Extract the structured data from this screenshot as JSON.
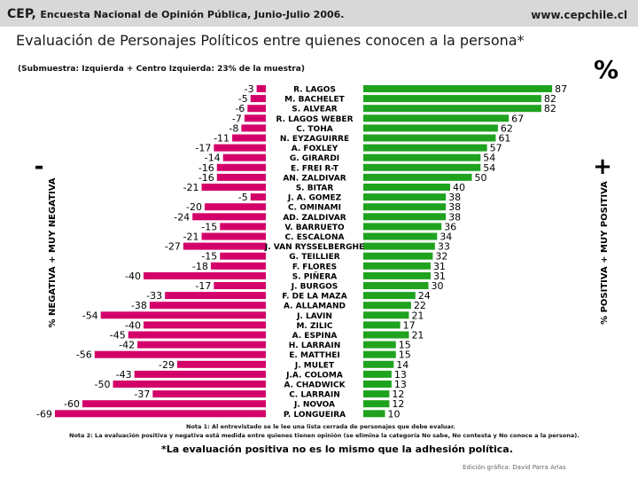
{
  "header": {
    "title": "CEP,",
    "subtitle": "Encuesta Nacional de Opinión Pública, Junio-Julio 2006.",
    "url": "www.cepchile.cl"
  },
  "page_title": "Evaluación de Personajes Políticos entre quienes conocen a la persona*",
  "subsample": "(Submuestra: Izquierda + Centro Izquierda: 23% de la muestra)",
  "percent_symbol": "%",
  "colors": {
    "negative": "#d4006a",
    "positive": "#1fa31f",
    "header_bg": "#d8d8d8"
  },
  "chart_data": {
    "type": "bar",
    "orientation": "horizontal-diverging",
    "title": "Evaluación de Personajes Políticos entre quienes conocen a la persona*",
    "left_axis_label": "% NEGATIVA + MUY NEGATIVA",
    "right_axis_label": "% POSITIVA + MUY POSITIVA",
    "negative_sign": "-",
    "positive_sign": "+",
    "categories": [
      "R. LAGOS",
      "M. BACHELET",
      "S. ALVEAR",
      "R. LAGOS WEBER",
      "C. TOHA",
      "N. EYZAGUIRRE",
      "A. FOXLEY",
      "G. GIRARDI",
      "E. FREI R-T",
      "AN. ZALDIVAR",
      "S. BITAR",
      "J. A. GOMEZ",
      "C. OMINAMI",
      "AD. ZALDIVAR",
      "V. BARRUETO",
      "C. ESCALONA",
      "J. VAN RYSSELBERGHE",
      "G. TEILLIER",
      "F. FLORES",
      "S. PIÑERA",
      "J. BURGOS",
      "F. DE LA MAZA",
      "A. ALLAMAND",
      "J. LAVIN",
      "M. ZILIC",
      "A. ESPINA",
      "H. LARRAIN",
      "E. MATTHEI",
      "J. MULET",
      "J.A. COLOMA",
      "A. CHADWICK",
      "C. LARRAIN",
      "J. NOVOA",
      "P. LONGUEIRA"
    ],
    "series": [
      {
        "name": "% Negativa + Muy negativa",
        "values": [
          -3,
          -5,
          -6,
          -7,
          -8,
          -11,
          -17,
          -14,
          -16,
          -16,
          -21,
          -5,
          -20,
          -24,
          -15,
          -21,
          -27,
          -15,
          -18,
          -40,
          -17,
          -33,
          -38,
          -54,
          -40,
          -45,
          -42,
          -56,
          -29,
          -43,
          -50,
          -37,
          -60,
          -69
        ]
      },
      {
        "name": "% Positiva + Muy positiva",
        "values": [
          87,
          82,
          82,
          67,
          62,
          61,
          57,
          54,
          54,
          50,
          40,
          38,
          38,
          38,
          36,
          34,
          33,
          32,
          31,
          31,
          30,
          24,
          22,
          21,
          17,
          21,
          15,
          15,
          14,
          13,
          13,
          12,
          12,
          10
        ]
      }
    ],
    "xlim": [
      -70,
      90
    ]
  },
  "notes": {
    "note1": "Nota 1: Al entrevistado se le lee una lista cerrada de personajes que debe evaluar.",
    "note2": "Nota 2: La evaluación positiva y negativa está medida entre quienes tienen opinión (se elimina la categoría No sabe, No contesta y No conoce a la persona).",
    "footnote": "*La evaluación positiva no es lo mismo que la adhesión política.",
    "credit": "Edición gráfica: David Parra Arias"
  }
}
